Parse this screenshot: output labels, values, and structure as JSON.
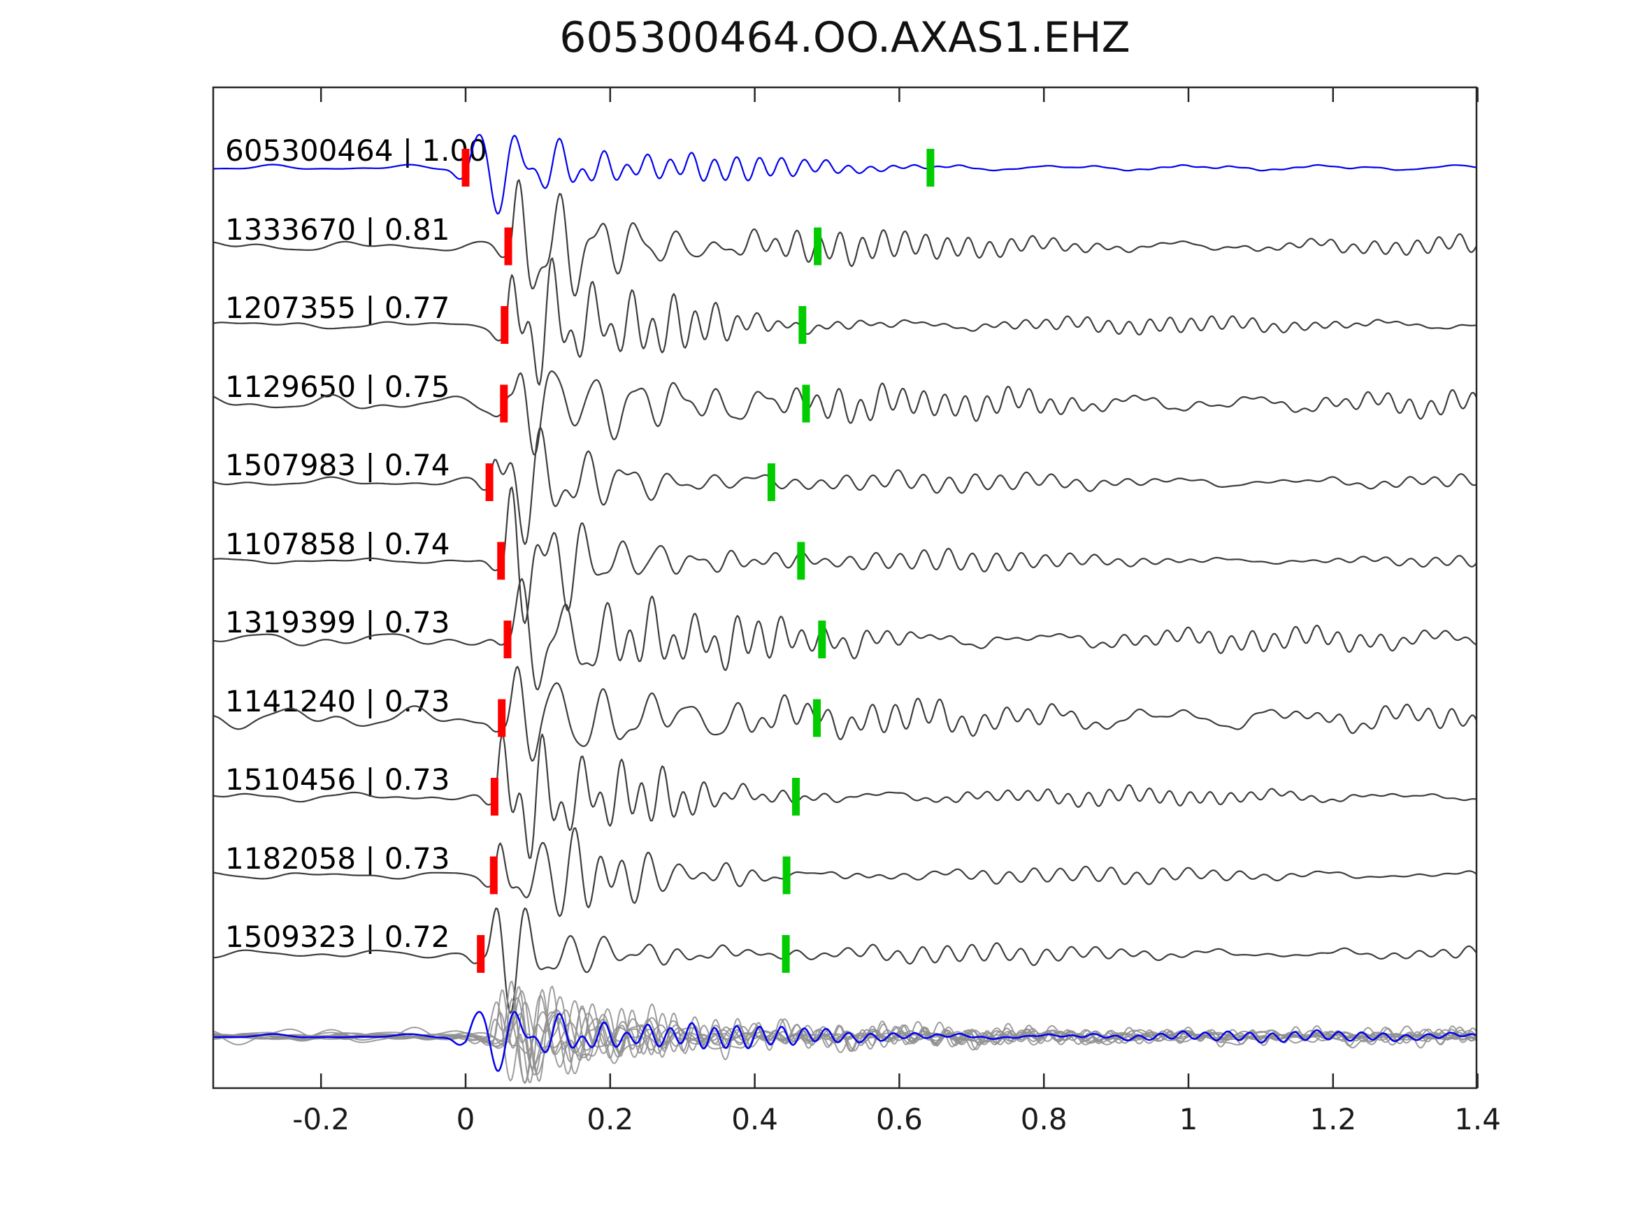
{
  "title": "605300464.OO.AXAS1.EHZ",
  "colors": {
    "background": "#ffffff",
    "reference_trace": "#0000ee",
    "match_trace": "#3d3d3d",
    "overlay_gray": "#909090",
    "p_pick_marker": "#ff0000",
    "s_pick_marker": "#00cc00",
    "axis": "#262626",
    "text": "#000000"
  },
  "chart_data": {
    "type": "line",
    "title": "605300464.OO.AXAS1.EHZ",
    "xlabel": "",
    "ylabel": "",
    "xlim": [
      -0.35,
      1.4
    ],
    "xtick_values": [
      -0.2,
      0,
      0.2,
      0.4,
      0.6,
      0.8,
      1,
      1.2,
      1.4
    ],
    "xtick_labels": [
      "-0.2",
      "0",
      "0.2",
      "0.4",
      "0.6",
      "0.8",
      "1",
      "1.2",
      "1.4"
    ],
    "grid": false,
    "legend": null,
    "description": "Stacked seismic waveforms: blue reference event and gray correlated events; red bar = P pick, green bar = S pick; bottom row is the aligned overlay stack of all traces.",
    "traces": [
      {
        "id": "605300464",
        "correlation": 1.0,
        "label": "605300464 | 1.00",
        "is_reference": true,
        "p_pick": 0.0,
        "s_pick": 0.643,
        "amp": 80,
        "noise": 0.55,
        "tail": 3.5,
        "fade": true,
        "tau": 0.1,
        "seed": 3
      },
      {
        "id": "1333670",
        "correlation": 0.81,
        "label": "1333670 | 0.81",
        "is_reference": false,
        "p_pick": 0.059,
        "s_pick": 0.487,
        "amp": 95,
        "noise": 1.0,
        "tail": 10,
        "fade": false,
        "tau": 0.14,
        "seed": 7
      },
      {
        "id": "1207355",
        "correlation": 0.77,
        "label": "1207355 | 0.77",
        "is_reference": false,
        "p_pick": 0.054,
        "s_pick": 0.466,
        "amp": 90,
        "noise": 0.8,
        "tail": 8,
        "fade": false,
        "tau": 0.13,
        "seed": 13
      },
      {
        "id": "1129650",
        "correlation": 0.75,
        "label": "1129650 | 0.75",
        "is_reference": false,
        "p_pick": 0.053,
        "s_pick": 0.471,
        "amp": 62,
        "noise": 1.6,
        "tail": 14,
        "fade": false,
        "tau": 0.22,
        "seed": 21
      },
      {
        "id": "1507983",
        "correlation": 0.74,
        "label": "1507983 | 0.74",
        "is_reference": false,
        "p_pick": 0.033,
        "s_pick": 0.423,
        "amp": 80,
        "noise": 0.9,
        "tail": 8,
        "fade": false,
        "tau": 0.13,
        "seed": 29
      },
      {
        "id": "1107858",
        "correlation": 0.74,
        "label": "1107858 | 0.74",
        "is_reference": false,
        "p_pick": 0.049,
        "s_pick": 0.464,
        "amp": 85,
        "noise": 0.5,
        "tail": 8,
        "fade": false,
        "tau": 0.14,
        "seed": 35
      },
      {
        "id": "1319399",
        "correlation": 0.73,
        "label": "1319399 | 0.73",
        "is_reference": false,
        "p_pick": 0.058,
        "s_pick": 0.493,
        "amp": 78,
        "noise": 1.4,
        "tail": 12,
        "fade": false,
        "tau": 0.16,
        "seed": 41
      },
      {
        "id": "1141240",
        "correlation": 0.73,
        "label": "1141240 | 0.73",
        "is_reference": false,
        "p_pick": 0.05,
        "s_pick": 0.486,
        "amp": 78,
        "noise": 2.2,
        "tail": 12,
        "fade": false,
        "tau": 0.17,
        "seed": 47
      },
      {
        "id": "1510456",
        "correlation": 0.73,
        "label": "1510456 | 0.73",
        "is_reference": false,
        "p_pick": 0.04,
        "s_pick": 0.457,
        "amp": 88,
        "noise": 0.9,
        "tail": 8,
        "fade": false,
        "tau": 0.12,
        "seed": 53
      },
      {
        "id": "1182058",
        "correlation": 0.73,
        "label": "1182058 | 0.73",
        "is_reference": false,
        "p_pick": 0.039,
        "s_pick": 0.444,
        "amp": 75,
        "noise": 0.7,
        "tail": 8,
        "fade": false,
        "tau": 0.13,
        "seed": 59
      },
      {
        "id": "1509323",
        "correlation": 0.72,
        "label": "1509323 | 0.72",
        "is_reference": false,
        "p_pick": 0.021,
        "s_pick": 0.443,
        "amp": 72,
        "noise": 0.8,
        "tail": 8,
        "fade": false,
        "tau": 0.12,
        "seed": 67
      }
    ],
    "overlay": {
      "scale": 0.75,
      "is_stack_of_all_traces": true
    }
  }
}
